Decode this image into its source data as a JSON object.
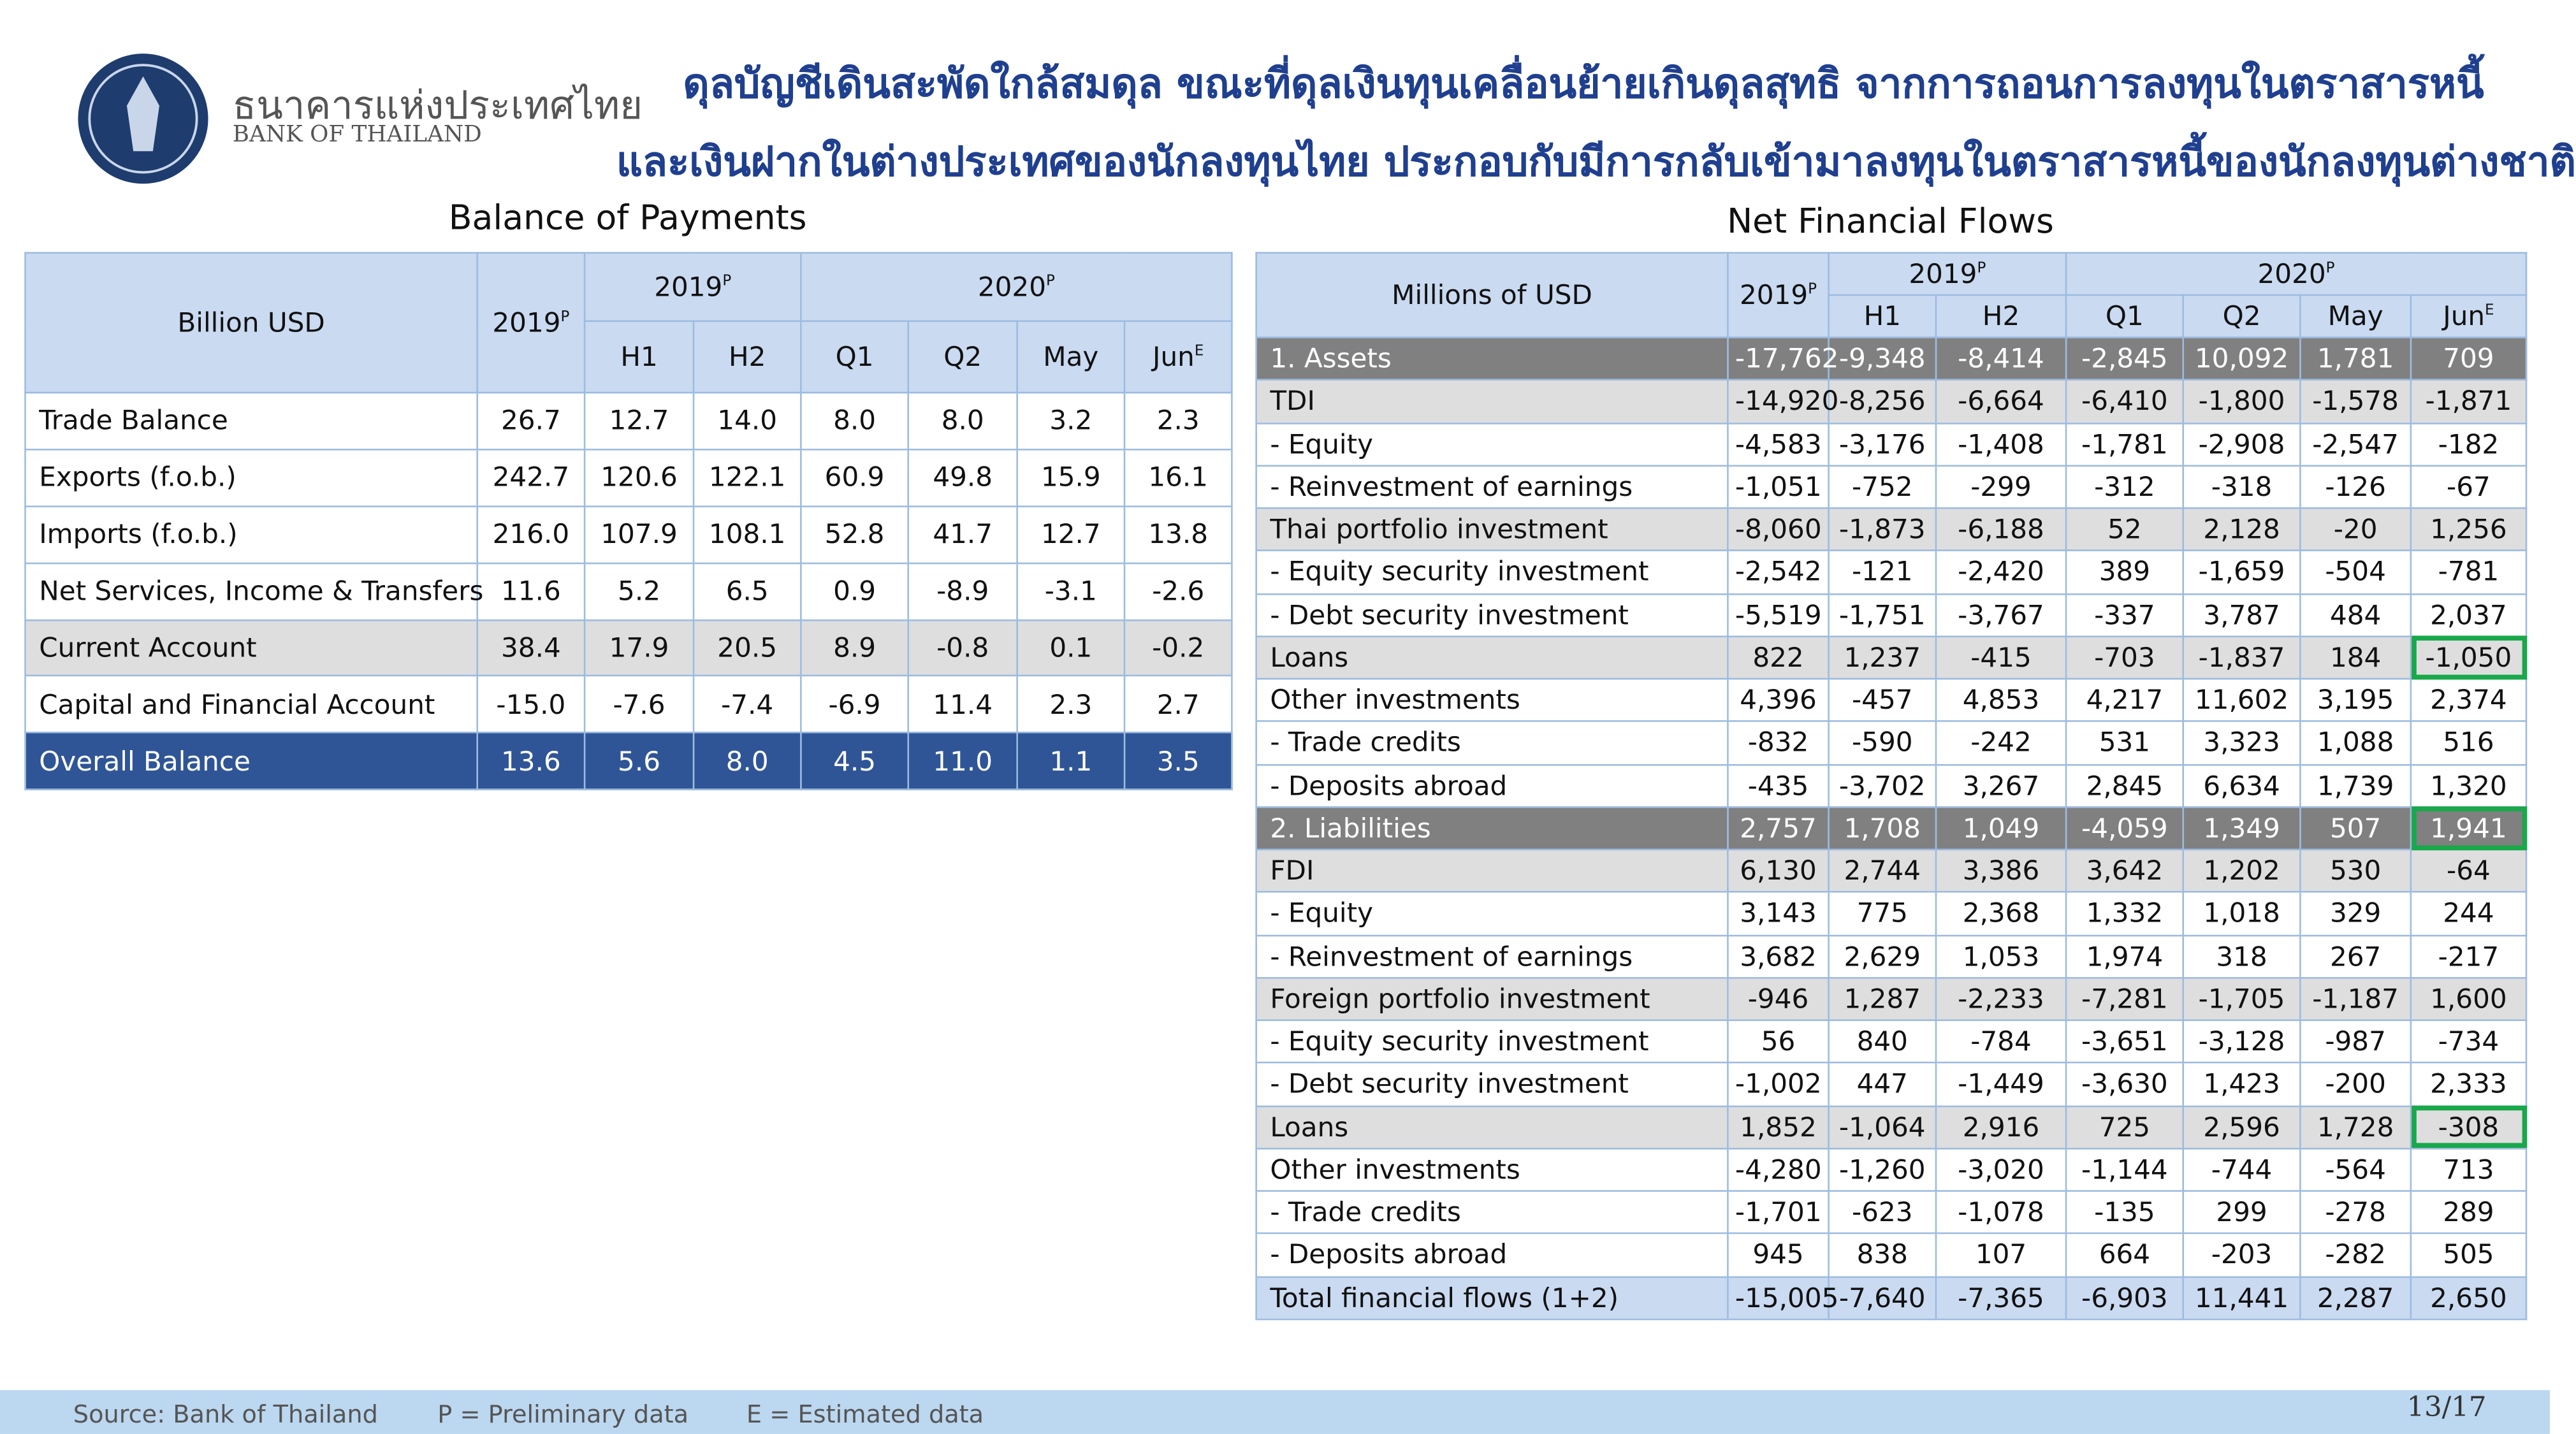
{
  "header": {
    "bank_name_thai": "ธนาคารแห่งประเทศไทย",
    "bank_name_english": "BANK OF THAILAND",
    "title_line_1": "ดุลบัญชีเดินสะพัดใกล้สมดุล ขณะที่ดุลเงินทุนเคลื่อนย้ายเกินดุลสุทธิ จากการถอนการลงทุนในตราสารหนี้",
    "title_line_2": "และเงินฝากในต่างประเทศของนักลงทุนไทย ประกอบกับมีการกลับเข้ามาลงทุนในตราสารหนี้ของนักลงทุนต่างชาติ"
  },
  "left_table": {
    "title": "Balance of Payments",
    "corner": "Billion USD",
    "year_col": {
      "text": "2019",
      "sup": "P"
    },
    "groups": [
      {
        "text": "2019",
        "sup": "P"
      },
      {
        "text": "2020",
        "sup": "P"
      }
    ],
    "subcols": [
      {
        "text": "H1"
      },
      {
        "text": "H2"
      },
      {
        "text": "Q1"
      },
      {
        "text": "Q2"
      },
      {
        "text": "May"
      },
      {
        "text": "Jun",
        "sup": "E"
      }
    ],
    "rows": [
      {
        "label": "Trade Balance",
        "values": [
          "26.7",
          "12.7",
          "14.0",
          "8.0",
          "8.0",
          "3.2",
          "2.3"
        ]
      },
      {
        "label": "Exports (f.o.b.)",
        "values": [
          "242.7",
          "120.6",
          "122.1",
          "60.9",
          "49.8",
          "15.9",
          "16.1"
        ]
      },
      {
        "label": "Imports (f.o.b.)",
        "values": [
          "216.0",
          "107.9",
          "108.1",
          "52.8",
          "41.7",
          "12.7",
          "13.8"
        ]
      },
      {
        "label": "Net Services, Income & Transfers",
        "values": [
          "11.6",
          "5.2",
          "6.5",
          "0.9",
          "-8.9",
          "-3.1",
          "-2.6"
        ]
      },
      {
        "label": "Current Account",
        "values": [
          "38.4",
          "17.9",
          "20.5",
          "8.9",
          "-0.8",
          "0.1",
          "-0.2"
        ]
      },
      {
        "label": "Capital and Financial Account",
        "values": [
          "-15.0",
          "-7.6",
          "-7.4",
          "-6.9",
          "11.4",
          "2.3",
          "2.7"
        ]
      },
      {
        "label": "Overall Balance",
        "values": [
          "13.6",
          "5.6",
          "8.0",
          "4.5",
          "11.0",
          "1.1",
          "3.5"
        ]
      }
    ]
  },
  "right_table": {
    "title": "Net Financial Flows",
    "corner": "Millions of USD",
    "year_col": {
      "text": "2019",
      "sup": "P"
    },
    "groups": [
      {
        "text": "2019",
        "sup": "P"
      },
      {
        "text": "2020",
        "sup": "P"
      }
    ],
    "subcols": [
      {
        "text": "H1"
      },
      {
        "text": "H2"
      },
      {
        "text": "Q1"
      },
      {
        "text": "Q2"
      },
      {
        "text": "May"
      },
      {
        "text": "Jun",
        "sup": "E"
      }
    ],
    "rows": [
      {
        "label": "1. Assets",
        "values": [
          "-17,762",
          "-9,348",
          "-8,414",
          "-2,845",
          "10,092",
          "1,781",
          "709"
        ]
      },
      {
        "label": "TDI",
        "values": [
          "-14,920",
          "-8,256",
          "-6,664",
          "-6,410",
          "-1,800",
          "-1,578",
          "-1,871"
        ]
      },
      {
        "label": "- Equity",
        "values": [
          "-4,583",
          "-3,176",
          "-1,408",
          "-1,781",
          "-2,908",
          "-2,547",
          "-182"
        ]
      },
      {
        "label": "- Reinvestment of earnings",
        "values": [
          "-1,051",
          "-752",
          "-299",
          "-312",
          "-318",
          "-126",
          "-67"
        ]
      },
      {
        "label": "Thai portfolio investment",
        "values": [
          "-8,060",
          "-1,873",
          "-6,188",
          "52",
          "2,128",
          "-20",
          "1,256"
        ]
      },
      {
        "label": "- Equity security investment",
        "values": [
          "-2,542",
          "-121",
          "-2,420",
          "389",
          "-1,659",
          "-504",
          "-781"
        ]
      },
      {
        "label": "- Debt security investment",
        "values": [
          "-5,519",
          "-1,751",
          "-3,767",
          "-337",
          "3,787",
          "484",
          "2,037"
        ]
      },
      {
        "label": "Loans",
        "values": [
          "822",
          "1,237",
          "-415",
          "-703",
          "-1,837",
          "184",
          "-1,050"
        ]
      },
      {
        "label": "Other investments",
        "values": [
          "4,396",
          "-457",
          "4,853",
          "4,217",
          "11,602",
          "3,195",
          "2,374"
        ]
      },
      {
        "label": "- Trade credits",
        "values": [
          "-832",
          "-590",
          "-242",
          "531",
          "3,323",
          "1,088",
          "516"
        ]
      },
      {
        "label": "- Deposits abroad",
        "values": [
          "-435",
          "-3,702",
          "3,267",
          "2,845",
          "6,634",
          "1,739",
          "1,320"
        ]
      },
      {
        "label": "2. Liabilities",
        "values": [
          "2,757",
          "1,708",
          "1,049",
          "-4,059",
          "1,349",
          "507",
          "1,941"
        ]
      },
      {
        "label": "FDI",
        "values": [
          "6,130",
          "2,744",
          "3,386",
          "3,642",
          "1,202",
          "530",
          "-64"
        ]
      },
      {
        "label": "- Equity",
        "values": [
          "3,143",
          "775",
          "2,368",
          "1,332",
          "1,018",
          "329",
          "244"
        ]
      },
      {
        "label": "- Reinvestment of earnings",
        "values": [
          "3,682",
          "2,629",
          "1,053",
          "1,974",
          "318",
          "267",
          "-217"
        ]
      },
      {
        "label": "Foreign portfolio investment",
        "values": [
          "-946",
          "1,287",
          "-2,233",
          "-7,281",
          "-1,705",
          "-1,187",
          "1,600"
        ]
      },
      {
        "label": "- Equity security investment",
        "values": [
          "56",
          "840",
          "-784",
          "-3,651",
          "-3,128",
          "-987",
          "-734"
        ]
      },
      {
        "label": "- Debt security investment",
        "values": [
          "-1,002",
          "447",
          "-1,449",
          "-3,630",
          "1,423",
          "-200",
          "2,333"
        ]
      },
      {
        "label": "Loans",
        "values": [
          "1,852",
          "-1,064",
          "2,916",
          "725",
          "2,596",
          "1,728",
          "-308"
        ]
      },
      {
        "label": "Other investments",
        "values": [
          "-4,280",
          "-1,260",
          "-3,020",
          "-1,144",
          "-744",
          "-564",
          "713"
        ]
      },
      {
        "label": "- Trade credits",
        "values": [
          "-1,701",
          "-623",
          "-1,078",
          "-135",
          "299",
          "-278",
          "289"
        ]
      },
      {
        "label": "- Deposits abroad",
        "values": [
          "945",
          "838",
          "107",
          "664",
          "-203",
          "-282",
          "505"
        ]
      },
      {
        "label": "Total financial flows (1+2)",
        "values": [
          "-15,005",
          "-7,640",
          "-7,365",
          "-6,903",
          "11,441",
          "2,287",
          "2,650"
        ]
      }
    ]
  },
  "footer": {
    "source": "Source: Bank of Thailand",
    "note_p": "P = Preliminary data",
    "note_e": "E = Estimated data",
    "page": "13/17"
  }
}
